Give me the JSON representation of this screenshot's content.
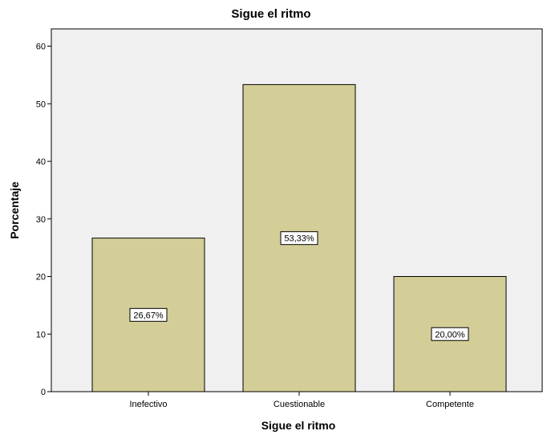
{
  "chart_data": {
    "type": "bar",
    "title": "Sigue el ritmo",
    "xlabel": "Sigue el ritmo",
    "ylabel": "Porcentaje",
    "categories": [
      "Inefectivo",
      "Cuestionable",
      "Competente"
    ],
    "values": [
      26.67,
      53.33,
      20.0
    ],
    "data_labels": [
      "26,67%",
      "53,33%",
      "20,00%"
    ],
    "ylim": [
      0,
      63
    ],
    "yticks": [
      0,
      10,
      20,
      30,
      40,
      50,
      60
    ],
    "grid": false,
    "legend": "none",
    "colors": {
      "plot_background": "#F0F0F0",
      "bar_fill": "#D3CE97",
      "bar_stroke": "#000000"
    }
  }
}
